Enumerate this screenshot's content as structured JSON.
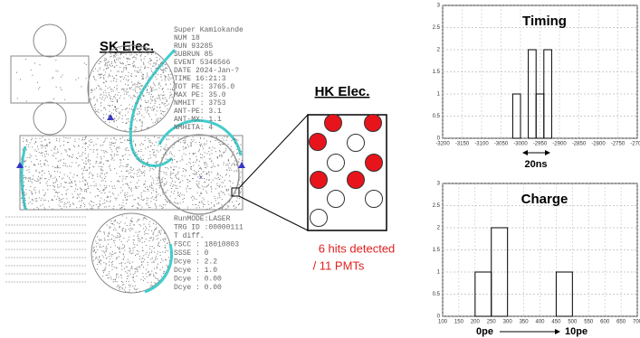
{
  "sk_display": {
    "title": "SK Elec.",
    "header": "Super Kamiokande",
    "info": [
      "NUM 18",
      "RUN 93285",
      "SUBRUN 85",
      "EVENT 5346566",
      "DATE 2024-Jan-?",
      "TIME 16:21:3",
      "TOT PE: 3765.0",
      "MAX PE: 35.0",
      "NMHIT : 3753",
      "ANT-PE: 3.1",
      "ANT-MX: 1.1",
      "NMHITA: 4"
    ],
    "info2": [
      "RunMODE:LASER",
      "TRG ID :00000111",
      "T diff.",
      "FSCC : 18010803",
      "SSSE : 0",
      "Dcye : 2.2",
      "Dcye : 1.0",
      "Dcye : 0.00",
      "Dcye : 0.00"
    ]
  },
  "hk_display": {
    "title": "HK Elec.",
    "result_line1": "6 hits detected",
    "result_line2": "/ 11 PMTs"
  },
  "chart_data": [
    {
      "type": "histogram",
      "title": "Timing",
      "bins": [
        -3020,
        -3000,
        -2980,
        -2960,
        -2940,
        -2920
      ],
      "values": [
        1,
        0,
        2,
        1,
        2
      ],
      "xlim": [
        -3200,
        -2700
      ],
      "xticks": [
        -3200,
        -3150,
        -3100,
        -3050,
        -3000,
        -2950,
        -2900,
        -2850,
        -2800,
        -2750,
        -2700
      ],
      "ylim": [
        0,
        3
      ],
      "yticks": [
        0,
        0.5,
        1,
        1.5,
        2,
        2.5,
        3
      ],
      "grid": true,
      "color": "#000000",
      "annotations": [
        "20ns"
      ]
    },
    {
      "type": "histogram",
      "title": "Charge",
      "bins": [
        200,
        250,
        300,
        350,
        400,
        450,
        500
      ],
      "values": [
        1,
        2,
        0,
        0,
        0,
        1
      ],
      "xlim": [
        100,
        700
      ],
      "xticks": [
        100,
        150,
        200,
        250,
        300,
        350,
        400,
        450,
        500,
        550,
        600,
        650,
        700
      ],
      "ylim": [
        0,
        3
      ],
      "yticks": [
        0,
        0.5,
        1,
        1.5,
        2,
        2.5,
        3
      ],
      "grid": true,
      "color": "#000000",
      "annotations": [
        "0pe",
        "10pe"
      ]
    }
  ]
}
